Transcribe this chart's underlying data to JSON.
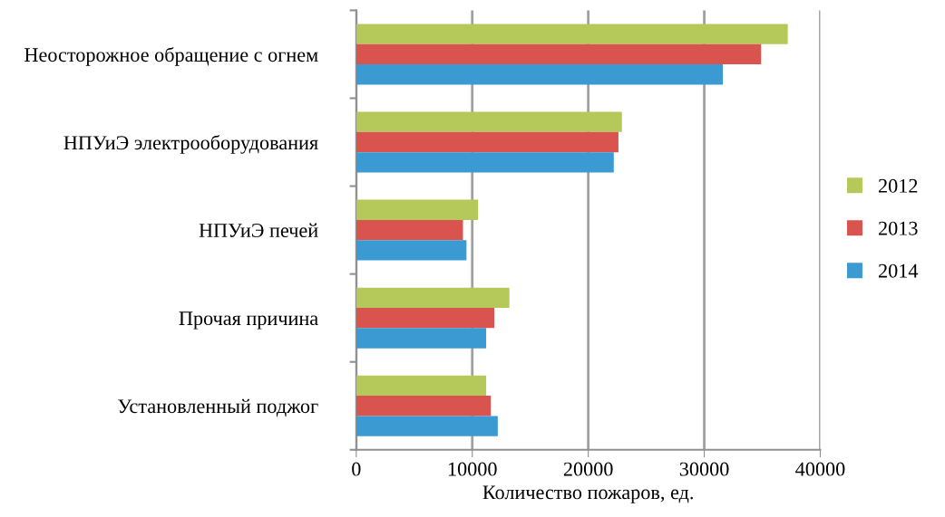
{
  "chart_data": {
    "type": "bar",
    "orientation": "horizontal",
    "xlabel": "Количество пожаров, ед.",
    "categories": [
      "Неосторожное обращение с огнем",
      "НПУиЭ электрооборудования",
      "НПУиЭ печей",
      "Прочая причина",
      "Установленный поджог"
    ],
    "series": [
      {
        "name": "2012",
        "color": "#b5c95a",
        "values": [
          37200,
          22900,
          10500,
          13200,
          11200
        ]
      },
      {
        "name": "2013",
        "color": "#d9534f",
        "values": [
          34900,
          22600,
          9200,
          11900,
          11600
        ]
      },
      {
        "name": "2014",
        "color": "#3c9ad3",
        "values": [
          31600,
          22200,
          9500,
          11200,
          12200
        ]
      }
    ],
    "xlim": [
      0,
      40000
    ],
    "xticks": [
      0,
      10000,
      20000,
      30000,
      40000
    ],
    "grid": "x",
    "legend": "right"
  }
}
